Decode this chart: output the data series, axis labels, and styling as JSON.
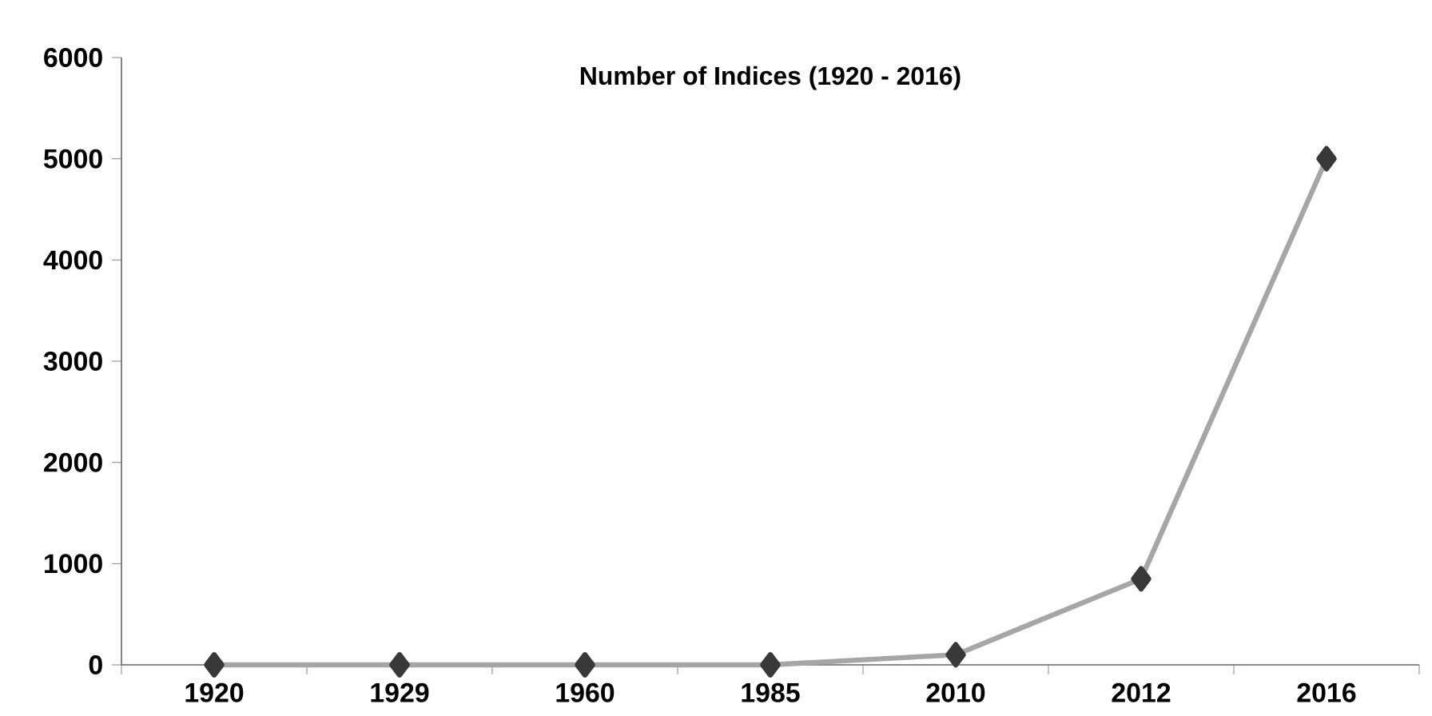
{
  "chart_data": {
    "type": "line",
    "title": "Number of Indices (1920 - 2016)",
    "categories": [
      "1920",
      "1929",
      "1960",
      "1985",
      "2010",
      "2012",
      "2016"
    ],
    "series": [
      {
        "color": "#a6a6a6",
        "values": [
          0,
          0,
          0,
          0,
          100,
          850,
          5000
        ]
      }
    ],
    "ylim": [
      0,
      6000
    ],
    "yticks": [
      0,
      1000,
      2000,
      3000,
      4000,
      5000,
      6000
    ],
    "marker": "diamond",
    "line_style": "solid",
    "grid": false,
    "legend": false
  }
}
